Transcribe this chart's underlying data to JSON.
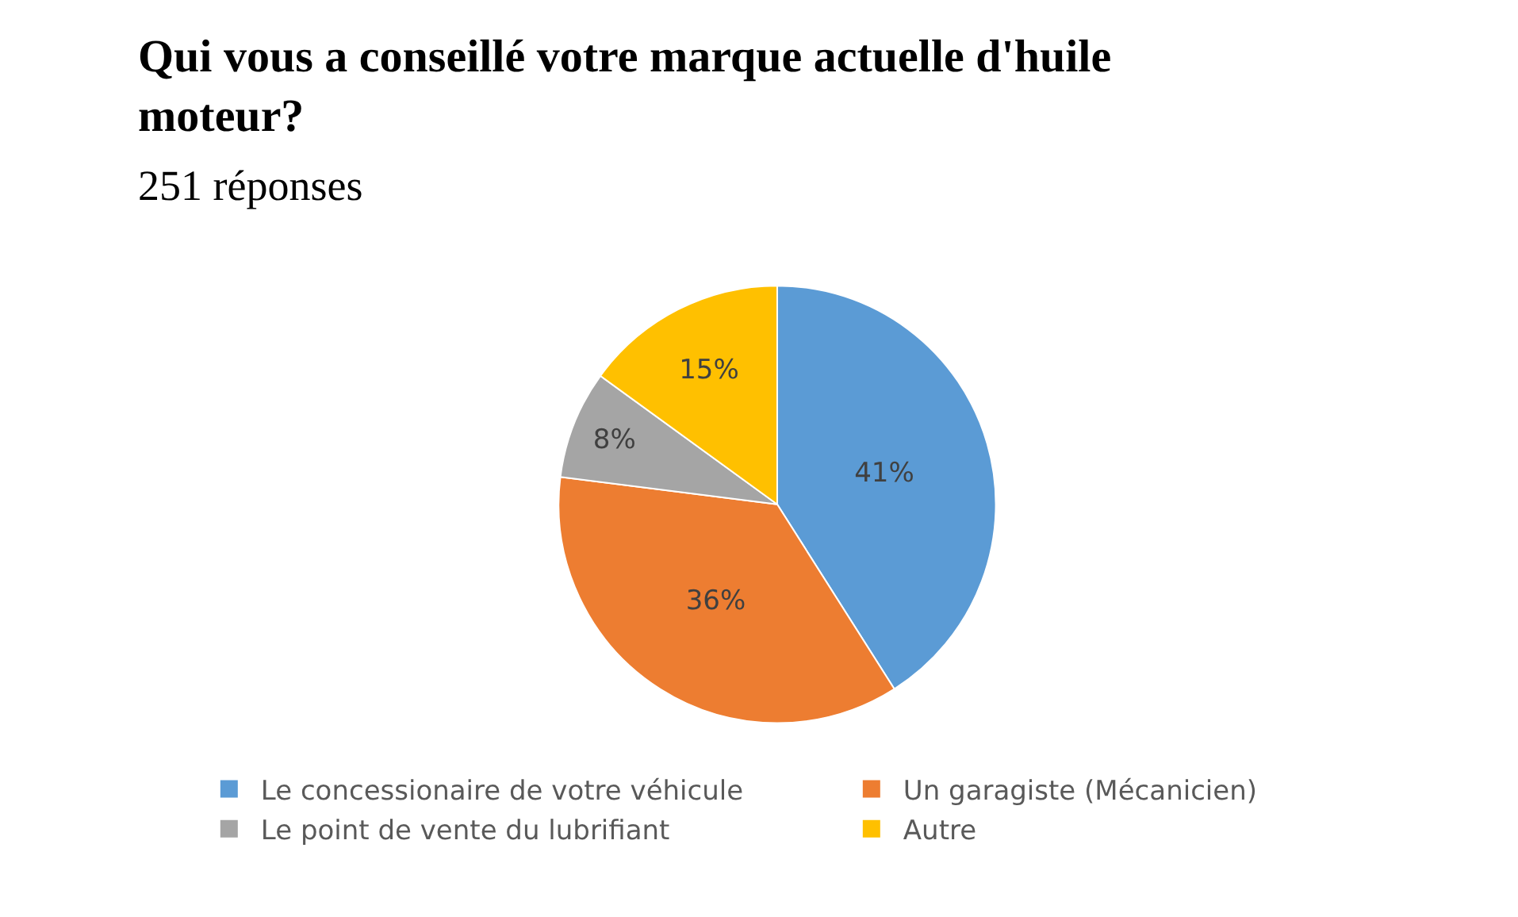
{
  "chart_data": {
    "type": "pie",
    "title": "Qui vous a conseillé votre marque actuelle d'huile moteur?",
    "subtitle": "251 réponses",
    "categories": [
      "Le concessionaire de votre véhicule",
      "Un garagiste (Mécanicien)",
      "Le point de vente du lubrifiant",
      "Autre"
    ],
    "values": [
      41,
      36,
      8,
      15
    ],
    "colors": [
      "#5b9bd5",
      "#ed7d31",
      "#a5a5a5",
      "#ffc000"
    ],
    "value_labels": [
      "41%",
      "36%",
      "8%",
      "15%"
    ],
    "legend": "bottom"
  }
}
